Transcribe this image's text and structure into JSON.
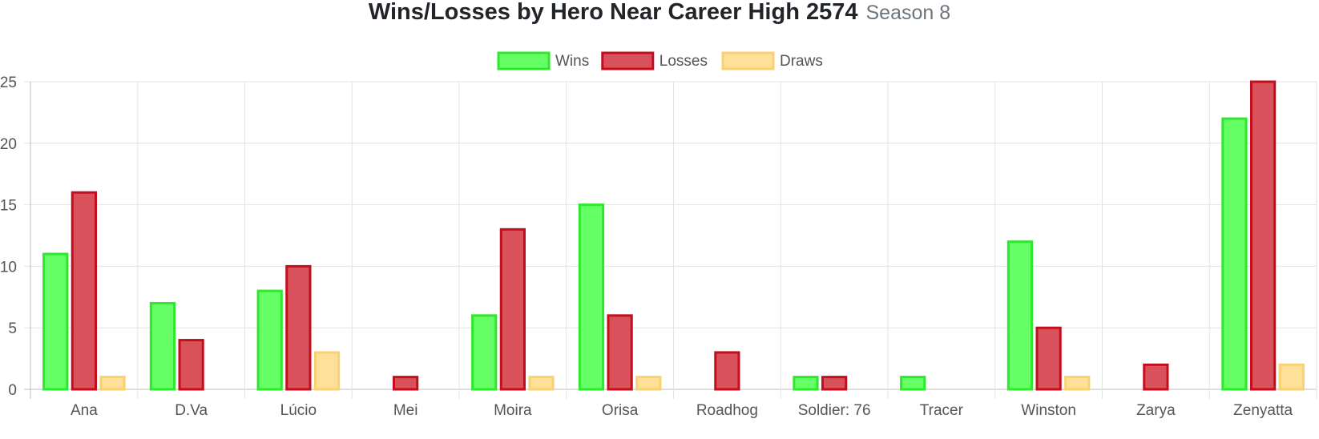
{
  "header": {
    "title": "Wins/Losses by Hero Near Career High 2574",
    "subtitle": "Season 8"
  },
  "chart_data": {
    "type": "bar",
    "title": "Wins/Losses by Hero Near Career High 2574",
    "subtitle": "Season 8",
    "xlabel": "",
    "ylabel": "",
    "ylim": [
      0,
      25
    ],
    "yticks": [
      0,
      5,
      10,
      15,
      20,
      25
    ],
    "grid": true,
    "legend_position": "top",
    "categories": [
      "Ana",
      "D.Va",
      "Lúcio",
      "Mei",
      "Moira",
      "Orisa",
      "Roadhog",
      "Soldier: 76",
      "Tracer",
      "Winston",
      "Zarya",
      "Zenyatta"
    ],
    "series": [
      {
        "name": "Wins",
        "values": [
          11,
          7,
          8,
          0,
          6,
          15,
          0,
          1,
          1,
          12,
          0,
          22
        ],
        "fill": "#66ff66",
        "stroke": "#2ee82e"
      },
      {
        "name": "Losses",
        "values": [
          16,
          4,
          10,
          1,
          13,
          6,
          3,
          1,
          0,
          5,
          2,
          25
        ],
        "fill": "#d9515b",
        "stroke": "#c30f1d"
      },
      {
        "name": "Draws",
        "values": [
          1,
          0,
          3,
          0,
          1,
          1,
          0,
          0,
          0,
          1,
          0,
          2
        ],
        "fill": "#ffe099",
        "stroke": "#f8d270"
      }
    ]
  }
}
